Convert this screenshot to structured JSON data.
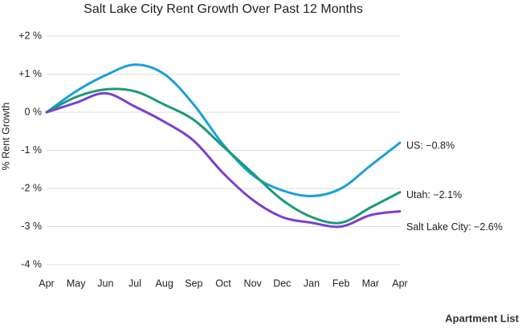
{
  "chart_data": {
    "type": "line",
    "title": "Salt Lake City Rent Growth Over Past 12 Months",
    "y_label": "% Rent Growth",
    "categories": [
      "Apr",
      "May",
      "Jun",
      "Jul",
      "Aug",
      "Sep",
      "Oct",
      "Nov",
      "Dec",
      "Jan",
      "Feb",
      "Mar",
      "Apr"
    ],
    "series": [
      {
        "label": "US: −0.8%",
        "color": "#1aa0dc",
        "values": [
          0,
          0.55,
          0.97,
          1.25,
          1.0,
          0.2,
          -0.85,
          -1.65,
          -2.05,
          -2.2,
          -2.0,
          -1.4,
          -0.8
        ]
      },
      {
        "label": "Utah: −2.1%",
        "color": "#1a9a78",
        "values": [
          0,
          0.4,
          0.6,
          0.55,
          0.2,
          -0.2,
          -0.9,
          -1.6,
          -2.3,
          -2.75,
          -2.9,
          -2.5,
          -2.1
        ]
      },
      {
        "label": "Salt Lake City: −2.6%",
        "color": "#7b3fd0",
        "values": [
          0,
          0.25,
          0.5,
          0.15,
          -0.25,
          -0.75,
          -1.6,
          -2.3,
          -2.75,
          -2.9,
          -3.0,
          -2.7,
          -2.6
        ]
      }
    ],
    "ylim": [
      -4,
      2
    ],
    "yticks": [
      {
        "value": -4,
        "label": "-4 %"
      },
      {
        "value": -3,
        "label": "-3 %"
      },
      {
        "value": -2,
        "label": "-2 %"
      },
      {
        "value": -1,
        "label": "-1 %"
      },
      {
        "value": 0,
        "label": "0 %"
      },
      {
        "value": 1,
        "label": "+1 %"
      },
      {
        "value": 2,
        "label": "+2 %"
      }
    ],
    "grid": true,
    "source": "Apartment List"
  }
}
